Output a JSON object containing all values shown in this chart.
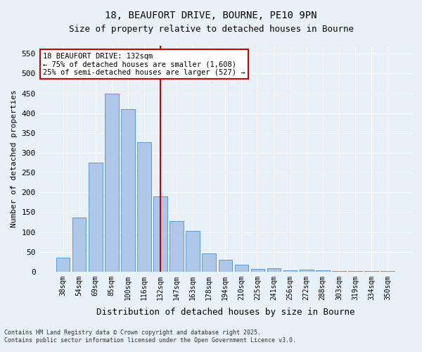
{
  "title_line1": "18, BEAUFORT DRIVE, BOURNE, PE10 9PN",
  "title_line2": "Size of property relative to detached houses in Bourne",
  "xlabel": "Distribution of detached houses by size in Bourne",
  "ylabel": "Number of detached properties",
  "categories": [
    "38sqm",
    "54sqm",
    "69sqm",
    "85sqm",
    "100sqm",
    "116sqm",
    "132sqm",
    "147sqm",
    "163sqm",
    "178sqm",
    "194sqm",
    "210sqm",
    "225sqm",
    "241sqm",
    "256sqm",
    "272sqm",
    "288sqm",
    "303sqm",
    "319sqm",
    "334sqm",
    "350sqm"
  ],
  "values": [
    35,
    137,
    275,
    450,
    410,
    327,
    190,
    127,
    103,
    45,
    30,
    17,
    6,
    8,
    3,
    5,
    3,
    2,
    2,
    1,
    2
  ],
  "bar_color": "#aec6e8",
  "bar_edge_color": "#5b9bd5",
  "highlight_index": 6,
  "highlight_line_color": "#cc0000",
  "ylim": [
    0,
    570
  ],
  "yticks": [
    0,
    50,
    100,
    150,
    200,
    250,
    300,
    350,
    400,
    450,
    500,
    550
  ],
  "annotation_title": "18 BEAUFORT DRIVE: 132sqm",
  "annotation_line2": "← 75% of detached houses are smaller (1,608)",
  "annotation_line3": "25% of semi-detached houses are larger (527) →",
  "annotation_box_color": "#cc0000",
  "footnote_line1": "Contains HM Land Registry data © Crown copyright and database right 2025.",
  "footnote_line2": "Contains public sector information licensed under the Open Government Licence v3.0.",
  "bg_color": "#e8f0f8",
  "plot_bg_color": "#e8f0f8"
}
